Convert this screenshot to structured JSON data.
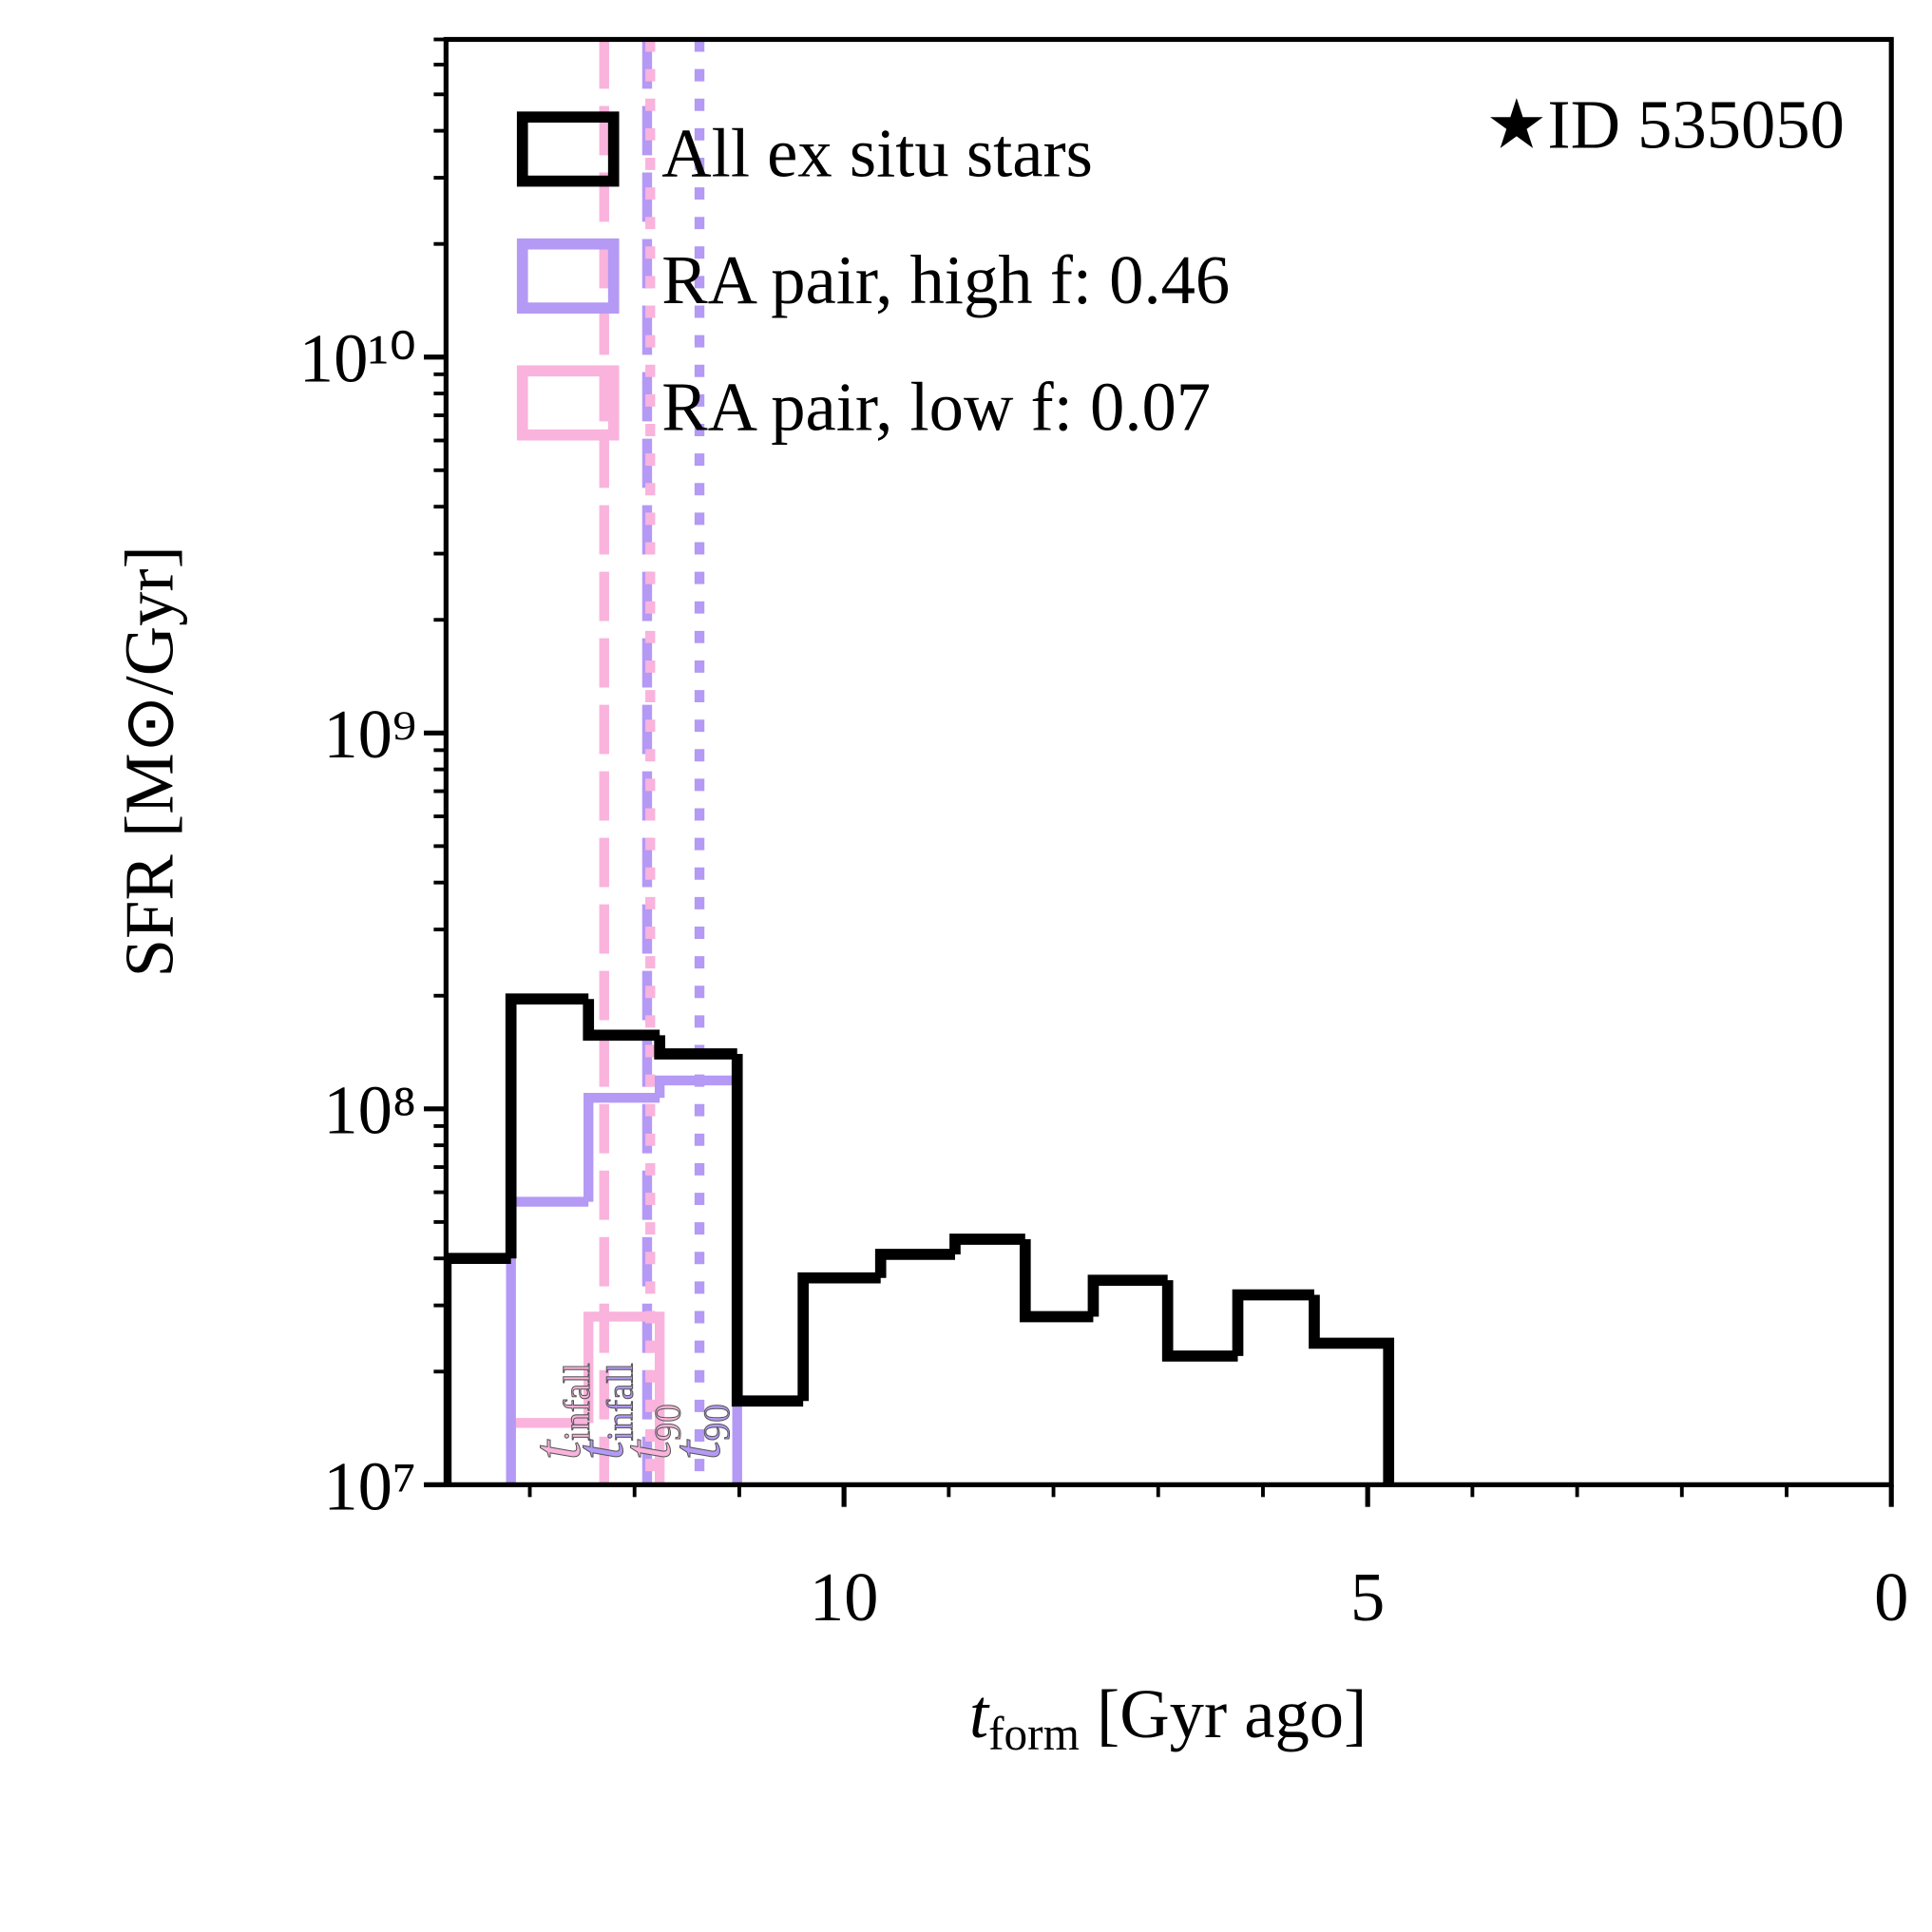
{
  "chart_data": {
    "type": "histogram_step",
    "annotation": "★ID 535050",
    "xlabel": {
      "main": "t",
      "sub": "form",
      "rest": " [Gyr ago]"
    },
    "ylabel": "SFR [M⊙/Gyr]",
    "xlim": [
      13.8,
      0
    ],
    "xticks": [
      10,
      5,
      0
    ],
    "xminorticks": [
      13,
      12,
      11,
      9,
      8,
      7,
      6,
      4,
      3,
      2,
      1
    ],
    "ylim": [
      10000000,
      70000000000
    ],
    "log_y": true,
    "yticks": [
      {
        "value": 10000000,
        "label": "10⁷"
      },
      {
        "value": 100000000,
        "label": "10⁸"
      },
      {
        "value": 1000000000,
        "label": "10⁹"
      },
      {
        "value": 10000000000,
        "label": "10¹⁰"
      }
    ],
    "legend": "upper left",
    "series": [
      {
        "name": "All ex situ stars",
        "color": "#000000",
        "bins": [
          13.8,
          13.18,
          12.44,
          11.76,
          11.02,
          10.39,
          9.65,
          8.94,
          8.27,
          7.62,
          6.91,
          6.24,
          5.51,
          4.8
        ],
        "values": [
          40000000,
          196000000,
          157000000,
          140000000,
          16700000,
          35500000,
          41000000,
          45000000,
          28000000,
          35000000,
          22000000,
          32000000,
          23800000
        ]
      },
      {
        "name": "RA pair, high f: 0.46",
        "color": "#b499f5",
        "bins": [
          13.18,
          12.44,
          11.76,
          11.02
        ],
        "values": [
          56600000,
          107000000,
          119000000
        ]
      },
      {
        "name": "RA pair, low f: 0.07",
        "color": "#f9b3dc",
        "bins": [
          13.18,
          12.44,
          11.76
        ],
        "values": [
          14600000,
          28000000
        ]
      }
    ],
    "markers": [
      {
        "x": 12.29,
        "label": "t",
        "sub": "infall",
        "color": "#f9b3dc",
        "style": "dashed"
      },
      {
        "x": 11.88,
        "label": "t",
        "sub": "infall",
        "color": "#b499f5",
        "style": "dashed"
      },
      {
        "x": 11.85,
        "label": "t",
        "sub": "90",
        "color": "#f9b3dc",
        "style": "dotted"
      },
      {
        "x": 11.38,
        "label": "t",
        "sub": "90",
        "color": "#b499f5",
        "style": "dotted"
      }
    ]
  }
}
